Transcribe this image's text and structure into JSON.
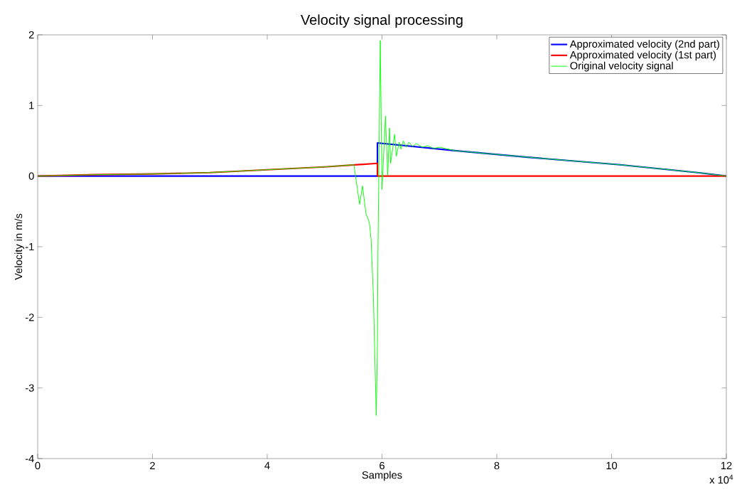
{
  "chart_data": {
    "type": "line",
    "title": "Velocity signal processing",
    "xlabel": "Samples",
    "ylabel": "Velocity in m/s",
    "annotations": [
      "x 10$^{4}$"
    ],
    "xlim": [
      0,
      12
    ],
    "ylim": [
      -4,
      2
    ],
    "xticks": [
      0,
      2,
      4,
      6,
      8,
      10,
      12
    ],
    "yticks": [
      -4,
      -3,
      -2,
      -1,
      0,
      1,
      2
    ],
    "legend": "top right",
    "grid": false,
    "line_style": "solid",
    "marker": "none",
    "series": [
      {
        "name": "Approximated velocity (2nd part)",
        "color": "#0000ff",
        "x": [
          0,
          5.92,
          5.92,
          7.27,
          8.5,
          10.15,
          11.5,
          12
        ],
        "values": [
          0,
          0,
          0.47,
          0.36,
          0.27,
          0.16,
          0.05,
          0
        ]
      },
      {
        "name": "Approximated velocity (1st part)",
        "color": "#ff0000",
        "x": [
          0,
          1,
          2,
          3,
          4,
          5,
          5.92,
          5.92,
          12
        ],
        "values": [
          0,
          0.02,
          0.03,
          0.05,
          0.09,
          0.13,
          0.18,
          0,
          0
        ]
      },
      {
        "name": "Original velocity signal",
        "color": "#00ff00",
        "x": [
          0,
          1,
          2,
          3,
          4,
          5,
          5.51,
          5.61,
          5.66,
          5.72,
          5.78,
          5.81,
          5.85,
          5.88,
          5.9,
          5.92,
          5.93,
          5.97,
          6.0,
          6.06,
          6.1,
          6.13,
          6.15,
          6.22,
          6.25,
          6.3,
          6.33,
          6.37,
          6.42,
          6.47,
          6.53,
          6.6,
          6.7,
          6.8,
          6.9,
          7.0,
          7.27,
          8.5,
          10.15,
          11.5,
          12
        ],
        "values": [
          0,
          0.02,
          0.03,
          0.05,
          0.09,
          0.13,
          0.16,
          -0.4,
          -0.14,
          -0.53,
          -0.66,
          -0.9,
          -1.71,
          -2.72,
          -3.39,
          -2.38,
          -1.03,
          1.92,
          -0.19,
          0.85,
          0.01,
          0.68,
          0.18,
          0.59,
          0.28,
          0.48,
          0.38,
          0.5,
          0.41,
          0.48,
          0.42,
          0.46,
          0.41,
          0.43,
          0.39,
          0.41,
          0.36,
          0.27,
          0.16,
          0.05,
          0
        ]
      }
    ]
  }
}
